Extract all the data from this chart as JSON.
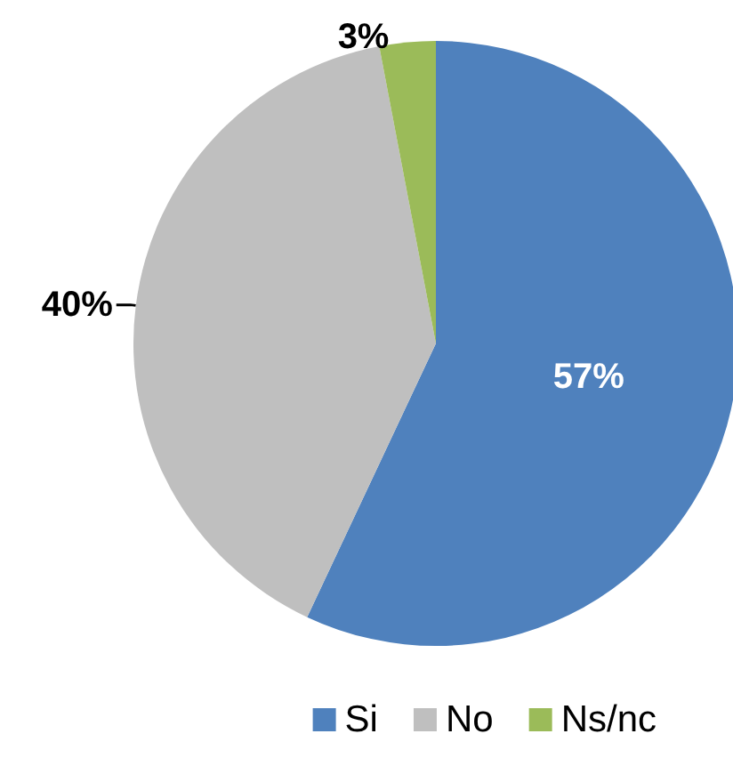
{
  "chart_data": {
    "type": "pie",
    "categories": [
      "Si",
      "No",
      "Ns/nc"
    ],
    "values": [
      57,
      40,
      3
    ],
    "colors": [
      "#4f81bd",
      "#bfbfbf",
      "#9bbb59"
    ],
    "value_labels": [
      "57%",
      "40%",
      "3%"
    ],
    "legend": "bottom right"
  }
}
